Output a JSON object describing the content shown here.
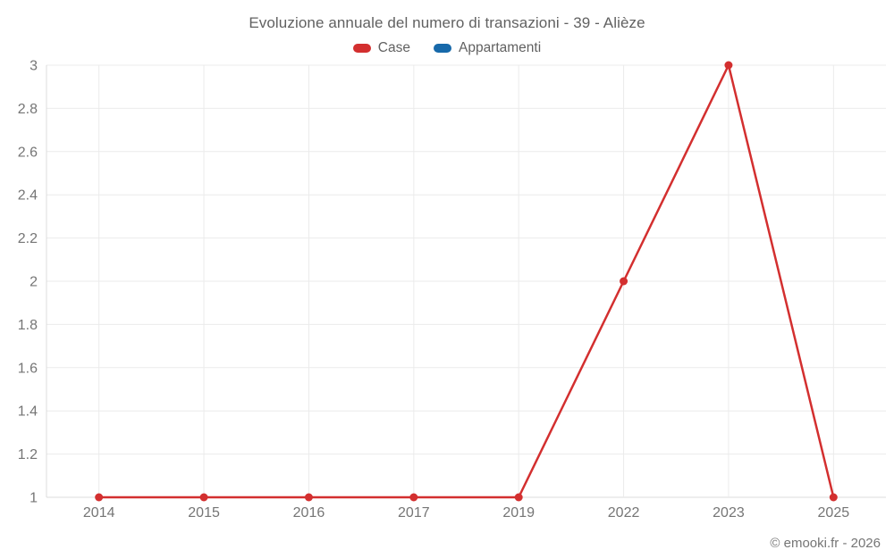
{
  "chart_data": {
    "type": "line",
    "title": "Evoluzione annuale del numero di transazioni - 39 - Alièze",
    "categories": [
      "2014",
      "2015",
      "2016",
      "2017",
      "2019",
      "2022",
      "2023",
      "2025"
    ],
    "series": [
      {
        "name": "Case",
        "color": "#d32f2f",
        "values": [
          1,
          1,
          1,
          1,
          1,
          2,
          3,
          1
        ]
      },
      {
        "name": "Appartamenti",
        "color": "#1769aa",
        "values": []
      }
    ],
    "xlabel": "",
    "ylabel": "",
    "ylim": [
      1,
      3
    ],
    "yticks": [
      "1",
      "1.2",
      "1.4",
      "1.6",
      "1.8",
      "2",
      "2.2",
      "2.4",
      "2.6",
      "2.8",
      "3"
    ],
    "grid": true,
    "legend_position": "top",
    "style": {
      "grid_color": "#ebebeb",
      "axis_color": "#dcdcdc",
      "tick_text_color": "#757575",
      "title_text_color": "#616161",
      "legend_text_color": "#616161",
      "footer_text_color": "#757575",
      "background_color": "#ffffff"
    }
  },
  "footer": {
    "credit": "© emooki.fr - 2026"
  }
}
